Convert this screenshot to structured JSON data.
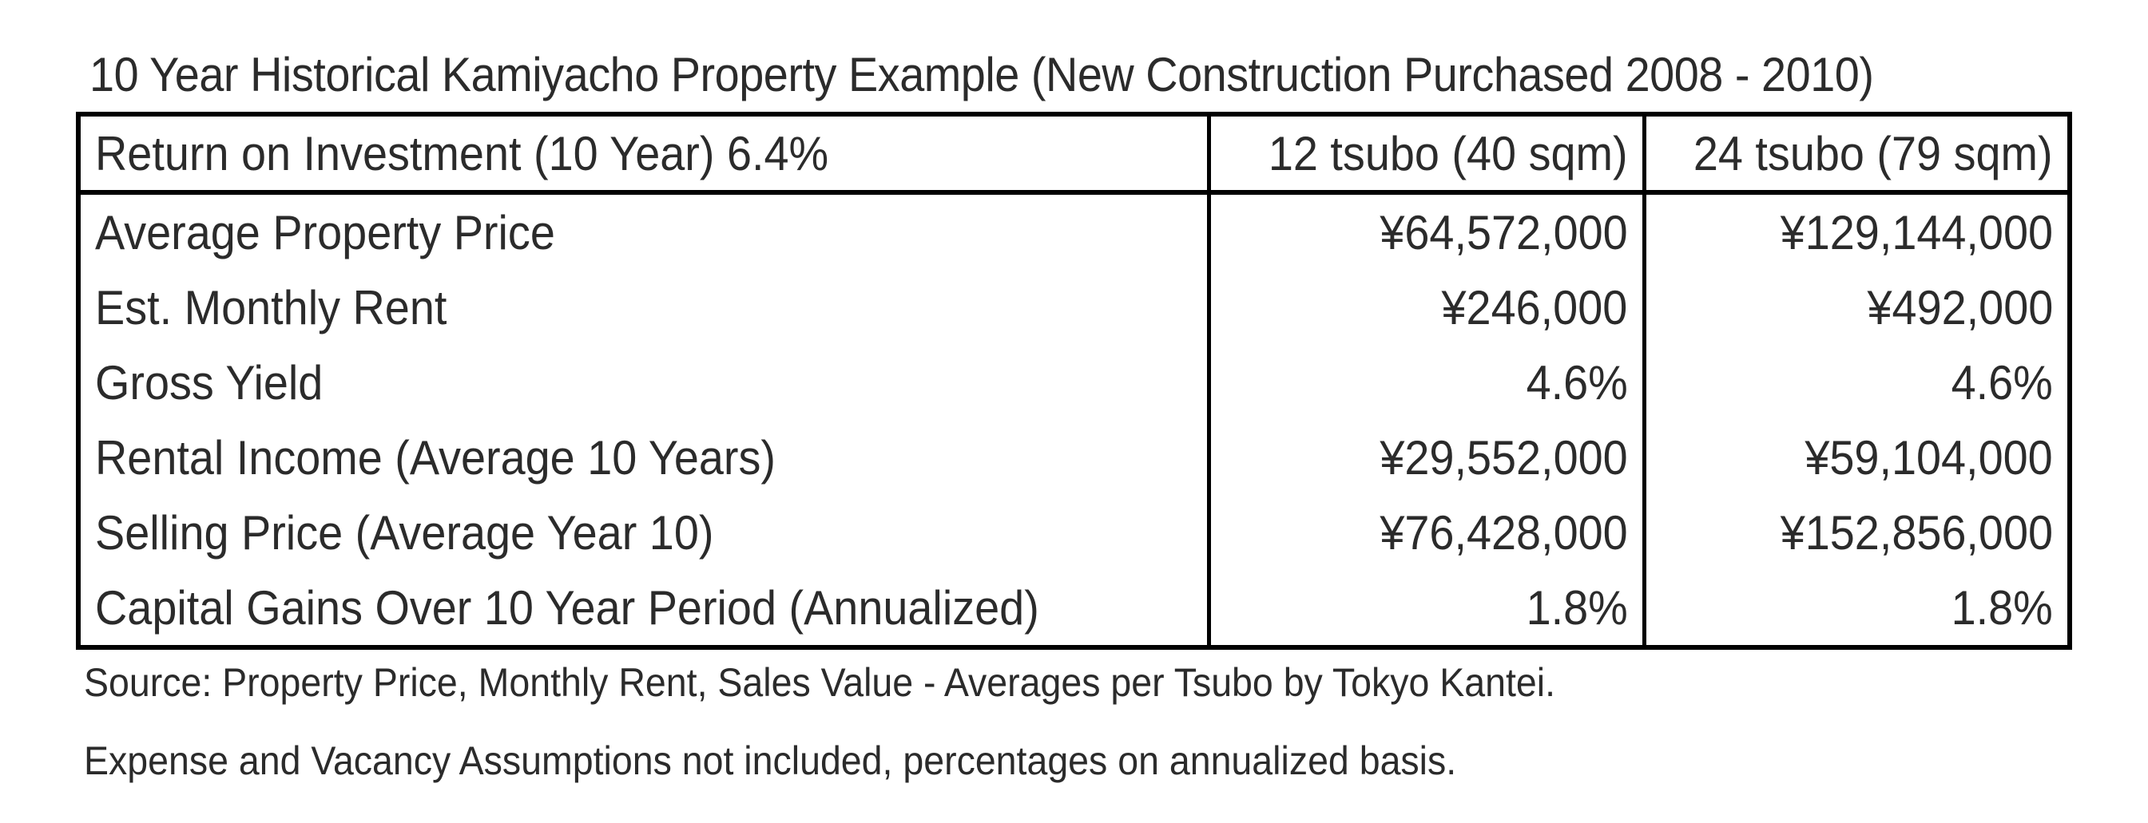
{
  "title": "10 Year Historical Kamiyacho Property Example (New Construction Purchased 2008 - 2010)",
  "table": {
    "header": {
      "label": "Return on Investment (10 Year) 6.4%",
      "col1": "12 tsubo (40 sqm)",
      "col2": "24 tsubo (79 sqm)"
    },
    "rows": [
      {
        "label": "Average Property Price",
        "col1": "¥64,572,000",
        "col2": "¥129,144,000"
      },
      {
        "label": "Est. Monthly Rent",
        "col1": "¥246,000",
        "col2": "¥492,000"
      },
      {
        "label": "Gross Yield",
        "col1": "4.6%",
        "col2": "4.6%"
      },
      {
        "label": "Rental Income (Average 10 Years)",
        "col1": "¥29,552,000",
        "col2": "¥59,104,000"
      },
      {
        "label": "Selling Price (Average Year 10)",
        "col1": "¥76,428,000",
        "col2": "¥152,856,000"
      },
      {
        "label": "Capital Gains Over 10 Year Period (Annualized)",
        "col1": "1.8%",
        "col2": "1.8%"
      }
    ]
  },
  "notes": {
    "source": "Source: Property Price, Monthly Rent, Sales Value - Averages per Tsubo by Tokyo Kantei.",
    "assumptions": "Expense and Vacancy Assumptions not included, percentages on annualized basis."
  }
}
